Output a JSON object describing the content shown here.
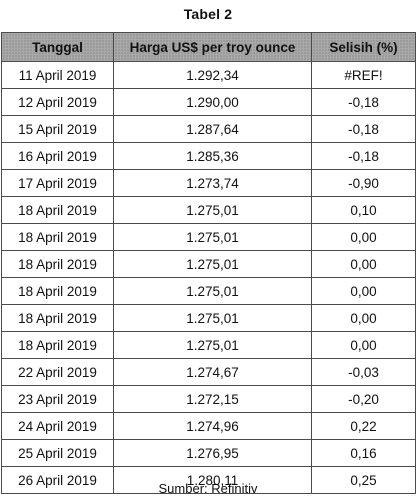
{
  "title": "Tabel 2",
  "table": {
    "headers": [
      "Tanggal",
      "Harga US$ per troy ounce",
      "Selisih (%)"
    ],
    "rows": [
      [
        "11 April 2019",
        "1.292,34",
        "#REF!"
      ],
      [
        "12 April 2019",
        "1.290,00",
        "-0,18"
      ],
      [
        "15 April 2019",
        "1.287,64",
        "-0,18"
      ],
      [
        "16 April 2019",
        "1.285,36",
        "-0,18"
      ],
      [
        "17 April 2019",
        "1.273,74",
        "-0,90"
      ],
      [
        "18 April 2019",
        "1.275,01",
        "0,10"
      ],
      [
        "18 April 2019",
        "1.275,01",
        "0,00"
      ],
      [
        "18 April 2019",
        "1.275,01",
        "0,00"
      ],
      [
        "18 April 2019",
        "1.275,01",
        "0,00"
      ],
      [
        "18 April 2019",
        "1.275,01",
        "0,00"
      ],
      [
        "18 April 2019",
        "1.275,01",
        "0,00"
      ],
      [
        "22 April 2019",
        "1.274,67",
        "-0,03"
      ],
      [
        "23 April 2019",
        "1.272,15",
        "-0,20"
      ],
      [
        "24 April 2019",
        "1.274,96",
        "0,22"
      ],
      [
        "25 April 2019",
        "1.276,95",
        "0,16"
      ],
      [
        "26 April 2019",
        "1.280,11",
        "0,25"
      ]
    ]
  },
  "source": "Sumber: Refinitiv"
}
